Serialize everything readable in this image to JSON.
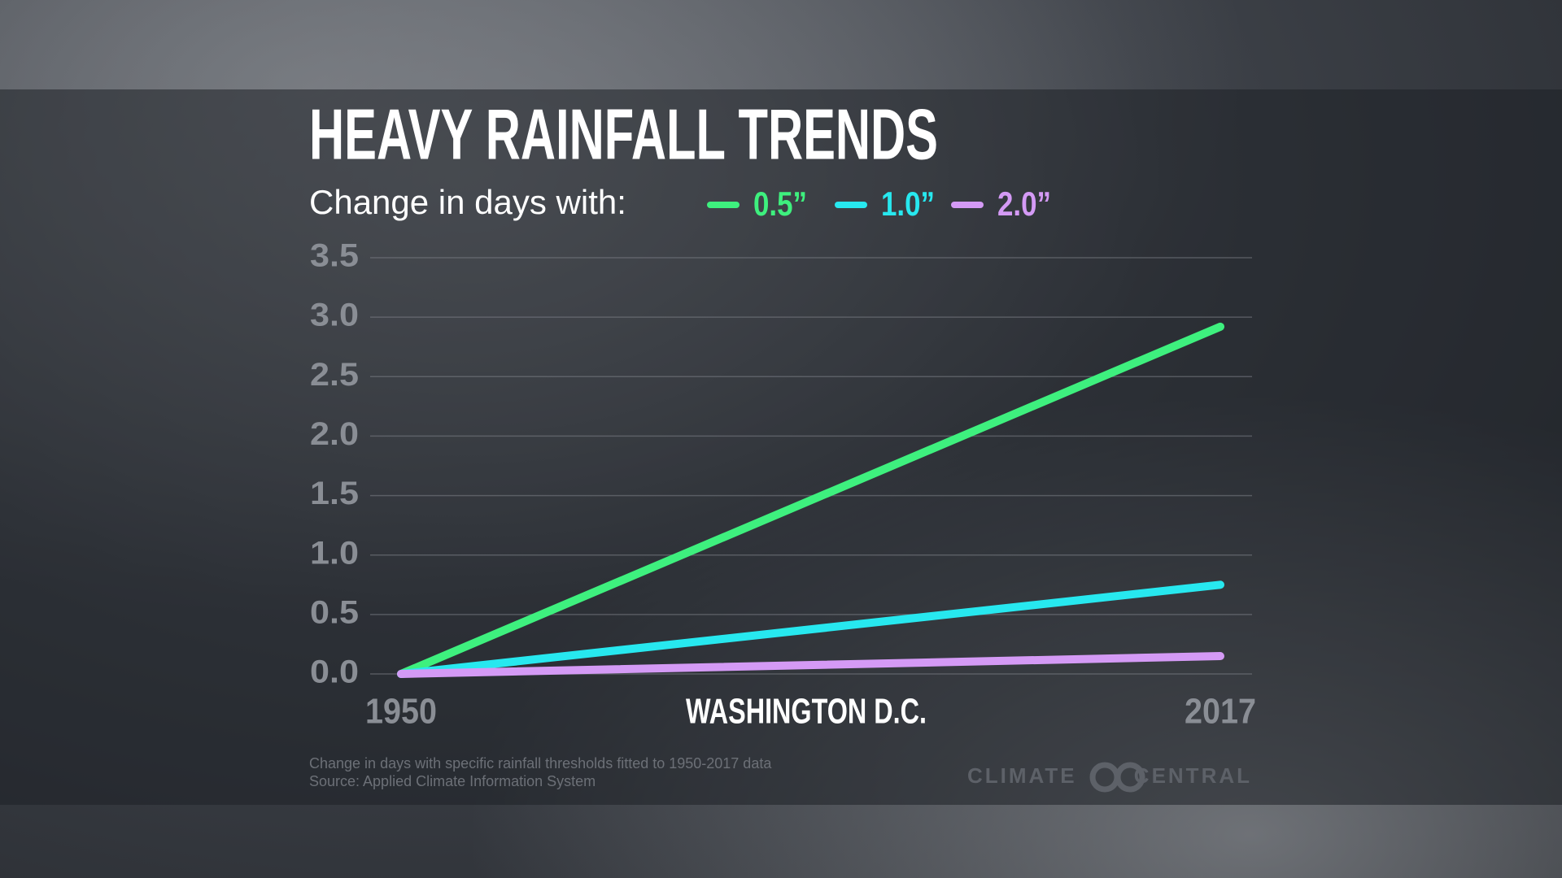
{
  "chart_data": {
    "type": "line",
    "title": "HEAVY RAINFALL TRENDS",
    "subtitle": "Change in days with:",
    "x_label": "WASHINGTON D.C.",
    "x": [
      1950,
      2017
    ],
    "xlim": [
      1950,
      2017
    ],
    "xticks": [
      1950,
      2017
    ],
    "ylim": [
      0,
      3.5
    ],
    "yticks": [
      {
        "value": 0,
        "label": "0.0"
      },
      0.5,
      {
        "value": 1,
        "label": "1.0"
      },
      1.5,
      {
        "value": 2,
        "label": "2.0"
      },
      2.5,
      {
        "value": 3,
        "label": "3.0"
      },
      3.5
    ],
    "grid": true,
    "series": [
      {
        "name": "0.5”",
        "color": "#3ef07e",
        "values": [
          0,
          2.92
        ]
      },
      {
        "name": "1.0”",
        "color": "#27e8ef",
        "values": [
          0,
          0.75
        ]
      },
      {
        "name": "2.0”",
        "color": "#d49af5",
        "values": [
          0,
          0.15
        ]
      }
    ],
    "notes": [
      "Change in days with specific rainfall thresholds fitted to 1950-2017 data",
      "Source: Applied Climate Information System"
    ],
    "logo": "CLIMATE CENTRAL"
  }
}
